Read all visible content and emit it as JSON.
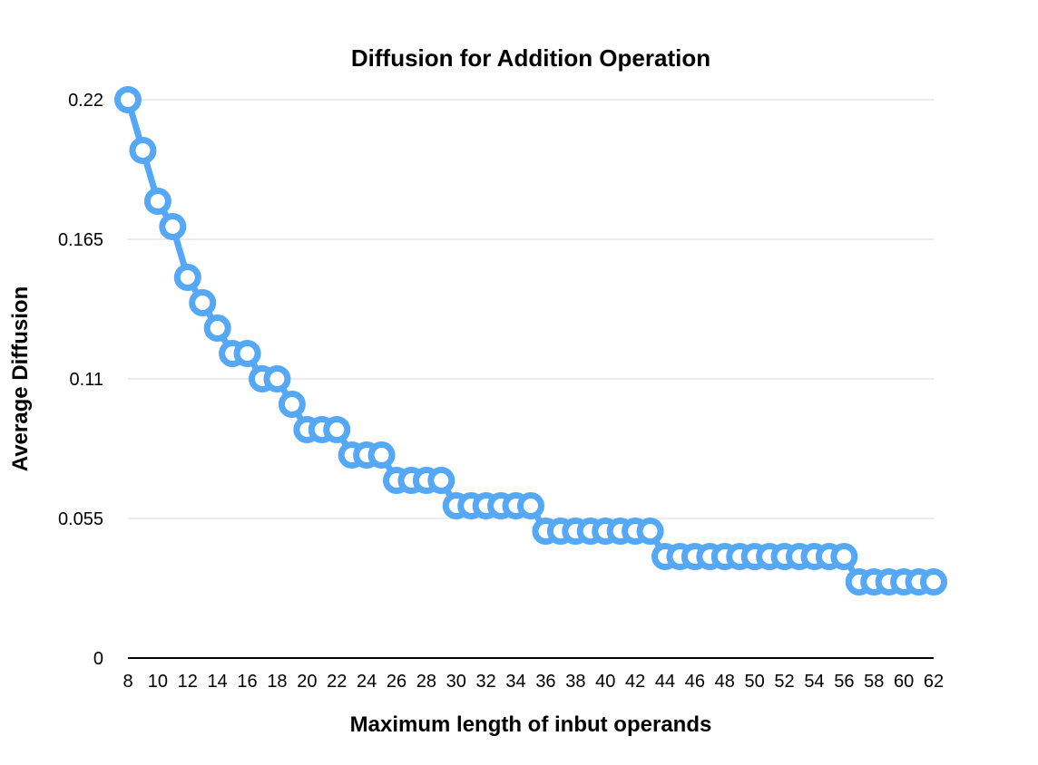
{
  "chart_data": {
    "type": "line",
    "title": "Diffusion for Addition Operation",
    "xlabel": "Maximum length of inbut operands",
    "ylabel": "Average Diffusion",
    "ylim": [
      0,
      0.22
    ],
    "yticks": [
      "0",
      "0.055",
      "0.11",
      "0.165",
      "0.22"
    ],
    "ytick_values": [
      0,
      0.055,
      0.11,
      0.165,
      0.22
    ],
    "xtick_labels": [
      "8",
      "10",
      "12",
      "14",
      "16",
      "18",
      "20",
      "22",
      "24",
      "26",
      "28",
      "30",
      "32",
      "34",
      "36",
      "38",
      "40",
      "42",
      "44",
      "46",
      "48",
      "50",
      "52",
      "54",
      "56",
      "58",
      "60",
      "62"
    ],
    "x": [
      8,
      9,
      10,
      11,
      12,
      13,
      14,
      15,
      16,
      17,
      18,
      19,
      20,
      21,
      22,
      23,
      24,
      25,
      26,
      27,
      28,
      29,
      30,
      31,
      32,
      33,
      34,
      35,
      36,
      37,
      38,
      39,
      40,
      41,
      42,
      43,
      44,
      45,
      46,
      47,
      48,
      49,
      50,
      51,
      52,
      53,
      54,
      55,
      56,
      57,
      58,
      59,
      60,
      61,
      62
    ],
    "series": [
      {
        "name": "",
        "color": "#55a8f5",
        "values": [
          0.22,
          0.2,
          0.18,
          0.17,
          0.15,
          0.14,
          0.13,
          0.12,
          0.12,
          0.11,
          0.11,
          0.1,
          0.09,
          0.09,
          0.09,
          0.08,
          0.08,
          0.08,
          0.07,
          0.07,
          0.07,
          0.07,
          0.06,
          0.06,
          0.06,
          0.06,
          0.06,
          0.06,
          0.05,
          0.05,
          0.05,
          0.05,
          0.05,
          0.05,
          0.05,
          0.05,
          0.04,
          0.04,
          0.04,
          0.04,
          0.04,
          0.04,
          0.04,
          0.04,
          0.04,
          0.04,
          0.04,
          0.04,
          0.04,
          0.03,
          0.03,
          0.03,
          0.03,
          0.03,
          0.03
        ]
      }
    ],
    "grid": true,
    "legend": "none"
  }
}
